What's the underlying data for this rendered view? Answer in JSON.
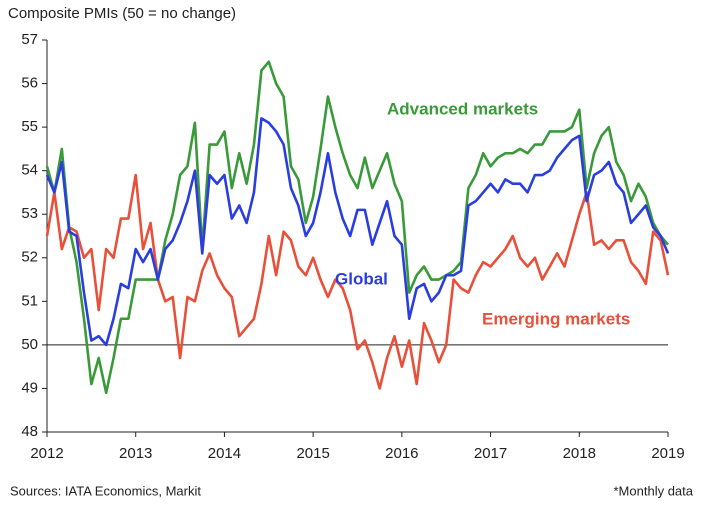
{
  "chart_data": {
    "type": "line",
    "title": "Composite PMIs (50 = no change)",
    "source": "Sources: IATA Economics, Markit",
    "note": "*Monthly data",
    "xlim": [
      2012,
      2019
    ],
    "xticks": [
      2012,
      2013,
      2014,
      2015,
      2016,
      2017,
      2018,
      2019
    ],
    "ylim": [
      48,
      57
    ],
    "yticks": [
      48,
      49,
      50,
      51,
      52,
      53,
      54,
      55,
      56,
      57
    ],
    "reference_line": 50,
    "x": [
      2012,
      2012.083,
      2012.167,
      2012.25,
      2012.333,
      2012.417,
      2012.5,
      2012.583,
      2012.667,
      2012.75,
      2012.833,
      2012.917,
      2013,
      2013.083,
      2013.167,
      2013.25,
      2013.333,
      2013.417,
      2013.5,
      2013.583,
      2013.667,
      2013.75,
      2013.833,
      2013.917,
      2014,
      2014.083,
      2014.167,
      2014.25,
      2014.333,
      2014.417,
      2014.5,
      2014.583,
      2014.667,
      2014.75,
      2014.833,
      2014.917,
      2015,
      2015.083,
      2015.167,
      2015.25,
      2015.333,
      2015.417,
      2015.5,
      2015.583,
      2015.667,
      2015.75,
      2015.833,
      2015.917,
      2016,
      2016.083,
      2016.167,
      2016.25,
      2016.333,
      2016.417,
      2016.5,
      2016.583,
      2016.667,
      2016.75,
      2016.833,
      2016.917,
      2017,
      2017.083,
      2017.167,
      2017.25,
      2017.333,
      2017.417,
      2017.5,
      2017.583,
      2017.667,
      2017.75,
      2017.833,
      2017.917,
      2018,
      2018.083,
      2018.167,
      2018.25,
      2018.333,
      2018.417,
      2018.5,
      2018.583,
      2018.667,
      2018.75,
      2018.833,
      2018.917,
      2019
    ],
    "series": [
      {
        "name": "Emerging markets",
        "color": "#e8503a",
        "values": [
          52.5,
          53.5,
          52.2,
          52.7,
          52.6,
          52.0,
          52.2,
          50.8,
          52.2,
          52.0,
          52.9,
          52.9,
          53.9,
          52.2,
          52.8,
          51.5,
          51.0,
          51.1,
          49.7,
          51.1,
          51.0,
          51.7,
          52.1,
          51.6,
          51.3,
          51.1,
          50.2,
          50.4,
          50.6,
          51.4,
          52.5,
          51.6,
          52.6,
          52.4,
          51.8,
          51.6,
          52.0,
          51.5,
          51.1,
          51.5,
          51.3,
          50.8,
          49.9,
          50.1,
          49.6,
          49.0,
          49.7,
          50.2,
          49.5,
          50.1,
          49.1,
          50.5,
          50.1,
          49.6,
          50.0,
          51.5,
          51.3,
          51.2,
          51.6,
          51.9,
          51.8,
          52.0,
          52.2,
          52.5,
          52.0,
          51.8,
          52.0,
          51.5,
          51.8,
          52.1,
          51.8,
          52.4,
          53.0,
          53.5,
          52.3,
          52.4,
          52.2,
          52.4,
          52.4,
          51.9,
          51.7,
          51.4,
          52.6,
          52.4,
          51.6
        ]
      },
      {
        "name": "Advanced markets",
        "color": "#3a9a3a",
        "values": [
          54.1,
          53.5,
          54.5,
          52.7,
          51.9,
          50.6,
          49.1,
          49.7,
          48.9,
          49.7,
          50.6,
          50.6,
          51.5,
          51.5,
          51.5,
          51.5,
          52.4,
          53.0,
          53.9,
          54.1,
          55.1,
          52.2,
          54.6,
          54.6,
          54.9,
          53.6,
          54.4,
          53.7,
          54.6,
          56.3,
          56.5,
          56.0,
          55.7,
          54.1,
          53.8,
          52.8,
          53.4,
          54.5,
          55.7,
          55.0,
          54.4,
          53.9,
          53.6,
          54.3,
          53.6,
          54.0,
          54.4,
          53.7,
          53.3,
          51.2,
          51.6,
          51.8,
          51.5,
          51.5,
          51.6,
          51.7,
          51.9,
          53.6,
          53.9,
          54.4,
          54.1,
          54.3,
          54.4,
          54.4,
          54.5,
          54.4,
          54.6,
          54.6,
          54.9,
          54.9,
          54.9,
          55.0,
          55.4,
          53.6,
          54.4,
          54.8,
          55.0,
          54.2,
          53.9,
          53.3,
          53.7,
          53.4,
          52.8,
          52.5,
          52.3
        ]
      },
      {
        "name": "Global",
        "color": "#2a3ee0",
        "values": [
          53.9,
          53.5,
          54.2,
          52.6,
          52.5,
          51.2,
          50.1,
          50.2,
          50.0,
          50.6,
          51.4,
          51.3,
          52.2,
          51.9,
          52.2,
          51.5,
          52.2,
          52.4,
          52.8,
          53.3,
          54.0,
          52.1,
          53.9,
          53.7,
          53.9,
          52.9,
          53.2,
          52.8,
          53.5,
          55.2,
          55.1,
          54.9,
          54.6,
          53.6,
          53.2,
          52.5,
          52.8,
          53.5,
          54.4,
          53.5,
          52.9,
          52.5,
          53.1,
          53.1,
          52.3,
          52.8,
          53.3,
          52.5,
          52.3,
          50.6,
          51.3,
          51.4,
          51.0,
          51.2,
          51.6,
          51.6,
          51.7,
          53.2,
          53.3,
          53.5,
          53.7,
          53.5,
          53.8,
          53.7,
          53.7,
          53.5,
          53.9,
          53.9,
          54.0,
          54.3,
          54.5,
          54.7,
          54.8,
          53.3,
          53.9,
          54.0,
          54.2,
          53.7,
          53.5,
          52.8,
          53.0,
          53.2,
          52.7,
          52.5,
          52.1
        ]
      }
    ]
  }
}
